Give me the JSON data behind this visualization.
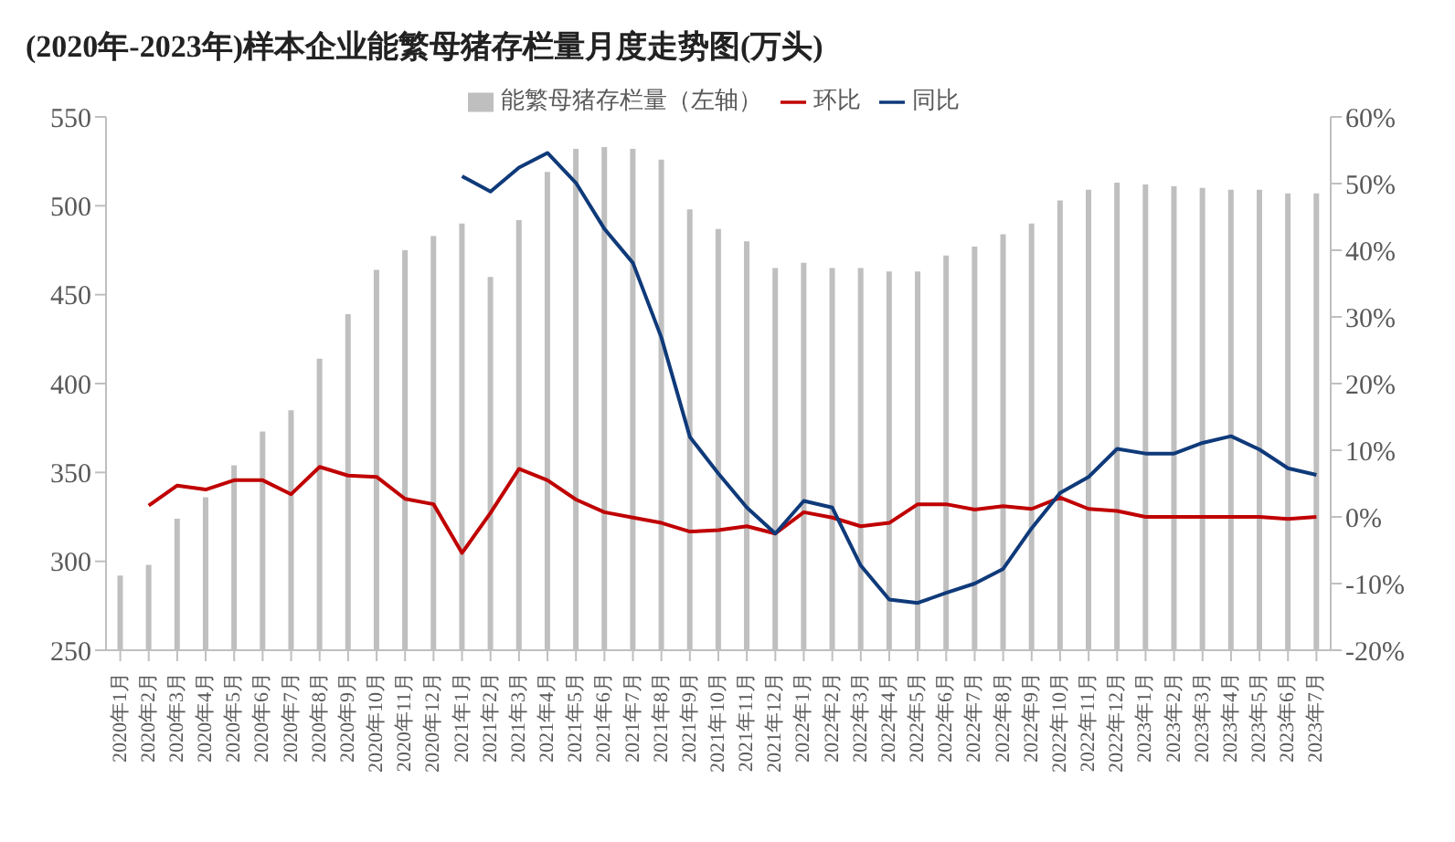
{
  "chart_data": {
    "type": "bar",
    "title": "(2020年-2023年)样本企业能繁母猪存栏量月度走势图(万头)",
    "categories": [
      "2020年1月",
      "2020年2月",
      "2020年3月",
      "2020年4月",
      "2020年5月",
      "2020年6月",
      "2020年7月",
      "2020年8月",
      "2020年9月",
      "2020年10月",
      "2020年11月",
      "2020年12月",
      "2021年1月",
      "2021年2月",
      "2021年3月",
      "2021年4月",
      "2021年5月",
      "2021年6月",
      "2021年7月",
      "2021年8月",
      "2021年9月",
      "2021年10月",
      "2021年11月",
      "2021年12月",
      "2022年1月",
      "2022年2月",
      "2022年3月",
      "2022年4月",
      "2022年5月",
      "2022年6月",
      "2022年7月",
      "2022年8月",
      "2022年9月",
      "2022年10月",
      "2022年11月",
      "2022年12月",
      "2023年1月",
      "2023年2月",
      "2023年3月",
      "2023年4月",
      "2023年5月",
      "2023年6月",
      "2023年7月"
    ],
    "series": [
      {
        "name": "能繁母猪存栏量（左轴）",
        "color": "#bfbfbf",
        "values": [
          292,
          298,
          324,
          336,
          354,
          373,
          385,
          414,
          439,
          464,
          475,
          483,
          490,
          460,
          492,
          519,
          532,
          533,
          532,
          526,
          498,
          487,
          480,
          465,
          468,
          465,
          465,
          463,
          463,
          472,
          477,
          484,
          490,
          503,
          509,
          513,
          512,
          511,
          510,
          509,
          509,
          507,
          507
        ]
      },
      {
        "name": "环比",
        "type": "line",
        "axis": "y2",
        "color": "#c00000",
        "values": [
          null,
          1.7,
          4.7,
          4.1,
          5.5,
          5.5,
          3.4,
          7.5,
          6.2,
          6.0,
          2.7,
          1.9,
          -5.4,
          0.6,
          7.2,
          5.5,
          2.6,
          0.7,
          -0.1,
          -0.9,
          -2.2,
          -2.0,
          -1.4,
          -2.5,
          0.7,
          -0.1,
          -1.4,
          -0.9,
          1.9,
          1.9,
          1.1,
          1.6,
          1.2,
          2.9,
          1.2,
          0.9,
          0,
          0,
          0,
          0,
          0,
          -0.3,
          0
        ]
      },
      {
        "name": "同比",
        "type": "line",
        "axis": "y2",
        "color": "#0f3a7a",
        "values": [
          null,
          null,
          null,
          null,
          null,
          null,
          null,
          null,
          null,
          null,
          null,
          null,
          51.1,
          48.8,
          52.4,
          54.6,
          50.1,
          43.2,
          38.1,
          26.9,
          12,
          6.5,
          1.4,
          -2.5,
          2.4,
          1.4,
          -7.3,
          -12.4,
          -12.9,
          -11.4,
          -10,
          -7.8,
          -1.7,
          3.6,
          6.0,
          10.2,
          9.5,
          9.5,
          11.1,
          12.1,
          10.1,
          7.3,
          6.3
        ]
      }
    ],
    "ylim": [
      250,
      550
    ],
    "yticks": [
      250,
      300,
      350,
      400,
      450,
      500,
      550
    ],
    "y2lim": [
      -20,
      60
    ],
    "y2ticks": [
      {
        "value": -20,
        "label": "-20%"
      },
      {
        "value": -10,
        "label": "-10%"
      },
      {
        "value": 0,
        "label": "0%"
      },
      {
        "value": 10,
        "label": "10%"
      },
      {
        "value": 20,
        "label": "20%"
      },
      {
        "value": 30,
        "label": "30%"
      },
      {
        "value": 40,
        "label": "40%"
      },
      {
        "value": 50,
        "label": "50%"
      },
      {
        "value": 60,
        "label": "60%"
      }
    ],
    "grid": false,
    "legend": "top",
    "marker": "none",
    "line_style": "solid"
  }
}
